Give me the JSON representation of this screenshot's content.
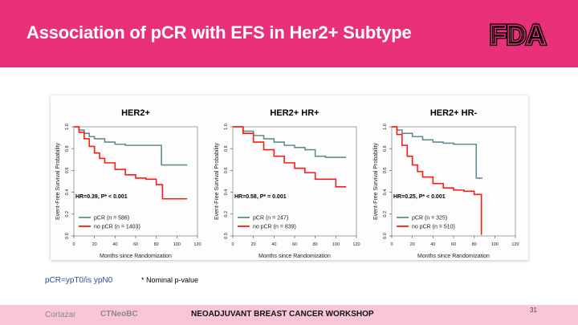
{
  "slide": {
    "title": "Association of pCR with EFS in Her2+ Subtype",
    "logo_text": "FDA",
    "footnote_left": "pCR=ypT0/is ypN0",
    "footnote_right": "* Nominal p-value",
    "footer": {
      "author": "Cortazar",
      "brand": "CTNeoBC",
      "event": "NEOADJUVANT BREAST CANCER WORKSHOP"
    },
    "page_number": "31"
  },
  "colors": {
    "header": "#e8317a",
    "footer": "#f9c6d8",
    "pcr": "#5f8f93",
    "no_pcr": "#ff1a10"
  },
  "chart_data": [
    {
      "type": "line",
      "title": "HER2+",
      "xlabel": "Months since Randomization",
      "ylabel": "Event-Free Survival Probability",
      "xlim": [
        0,
        120
      ],
      "ylim": [
        0,
        1
      ],
      "xticks": [
        "0",
        "20",
        "40",
        "60",
        "80",
        "100",
        "120"
      ],
      "yticks": [
        "0.0",
        "0.2",
        "0.4",
        "0.6",
        "0.8",
        "1.0"
      ],
      "annotation": "HR=0.39, P* < 0.001",
      "series": [
        {
          "name": "pCR",
          "n_label": "(n = 586)",
          "x": [
            0,
            5,
            10,
            15,
            20,
            30,
            40,
            50,
            60,
            70,
            80,
            85,
            110
          ],
          "y": [
            1,
            0.97,
            0.94,
            0.91,
            0.89,
            0.86,
            0.84,
            0.83,
            0.83,
            0.83,
            0.83,
            0.65,
            0.65
          ]
        },
        {
          "name": "no pCR",
          "n_label": "(n = 1403)",
          "x": [
            0,
            5,
            10,
            15,
            20,
            25,
            30,
            40,
            50,
            60,
            70,
            80,
            86,
            90,
            110
          ],
          "y": [
            1,
            0.95,
            0.89,
            0.82,
            0.76,
            0.71,
            0.67,
            0.61,
            0.56,
            0.53,
            0.52,
            0.47,
            0.34,
            0.34,
            0.34
          ]
        }
      ]
    },
    {
      "type": "line",
      "title": "HER2+ HR+",
      "xlabel": "Months since Randomization",
      "ylabel": "Event-Free Survival Probability",
      "xlim": [
        0,
        120
      ],
      "ylim": [
        0,
        1
      ],
      "xticks": [
        "0",
        "20",
        "40",
        "60",
        "80",
        "100",
        "120"
      ],
      "yticks": [
        "0.0",
        "0.2",
        "0.4",
        "0.6",
        "0.8",
        "1.0"
      ],
      "annotation": "HR=0.58, P* = 0.001",
      "series": [
        {
          "name": "pCR",
          "n_label": "(n = 247)",
          "x": [
            0,
            10,
            20,
            30,
            40,
            50,
            60,
            70,
            80,
            90,
            110
          ],
          "y": [
            1,
            0.96,
            0.92,
            0.89,
            0.86,
            0.83,
            0.81,
            0.79,
            0.73,
            0.72,
            0.72
          ]
        },
        {
          "name": "no pCR",
          "n_label": "(n = 839)",
          "x": [
            0,
            10,
            20,
            30,
            40,
            50,
            60,
            70,
            80,
            90,
            100,
            110
          ],
          "y": [
            1,
            0.94,
            0.86,
            0.79,
            0.73,
            0.67,
            0.62,
            0.58,
            0.52,
            0.52,
            0.45,
            0.45
          ]
        }
      ]
    },
    {
      "type": "line",
      "title": "HER2+ HR-",
      "xlabel": "Months since Randomization",
      "ylabel": "Event-Free Survival Probability",
      "xlim": [
        0,
        120
      ],
      "ylim": [
        0,
        1
      ],
      "xticks": [
        "0",
        "20",
        "40",
        "60",
        "80",
        "100",
        "120"
      ],
      "yticks": [
        "0.0",
        "0.2",
        "0.4",
        "0.6",
        "0.8",
        "1.0"
      ],
      "annotation": "HR=0.25, P* < 0.001",
      "series": [
        {
          "name": "pCR",
          "n_label": "(n = 325)",
          "x": [
            0,
            5,
            10,
            20,
            30,
            40,
            50,
            60,
            70,
            80,
            82,
            85,
            88
          ],
          "y": [
            1,
            0.97,
            0.94,
            0.91,
            0.88,
            0.86,
            0.85,
            0.84,
            0.84,
            0.84,
            0.53,
            0.53,
            0.53
          ]
        },
        {
          "name": "no pCR",
          "n_label": "(n = 510)",
          "x": [
            0,
            5,
            10,
            15,
            20,
            25,
            30,
            40,
            50,
            60,
            70,
            80,
            85,
            87
          ],
          "y": [
            1,
            0.93,
            0.83,
            0.73,
            0.65,
            0.59,
            0.54,
            0.48,
            0.44,
            0.42,
            0.41,
            0.38,
            0.38,
            0.01
          ]
        }
      ]
    }
  ]
}
